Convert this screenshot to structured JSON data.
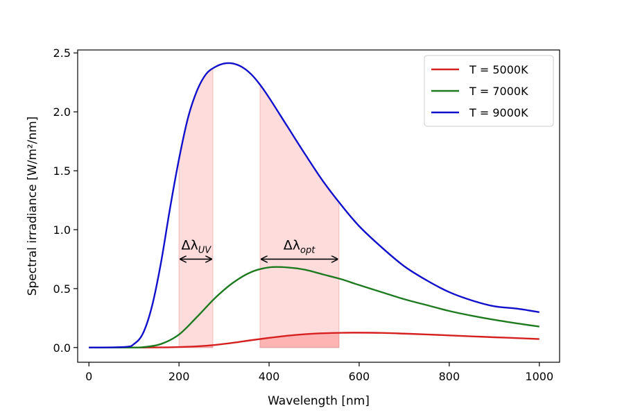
{
  "chart_data": {
    "type": "line",
    "title": "",
    "xlabel": "Wavelength [nm]",
    "ylabel": "Spectral irradiance [W/m²/nm]",
    "xlim": [
      -25,
      1045
    ],
    "ylim": [
      -0.125,
      2.525
    ],
    "xticks": [
      0,
      200,
      400,
      600,
      800,
      1000
    ],
    "yticks": [
      0.0,
      0.5,
      1.0,
      1.5,
      2.0,
      2.5
    ],
    "xtick_labels": [
      "0",
      "200",
      "400",
      "600",
      "800",
      "1000"
    ],
    "ytick_labels": [
      "0.0",
      "0.5",
      "1.0",
      "1.5",
      "2.0",
      "2.5"
    ],
    "grid": false,
    "legend_position": "top-right",
    "series": [
      {
        "name": "T = 5000K",
        "color": "#d62020",
        "x": [
          0,
          80,
          120,
          160,
          200,
          240,
          280,
          320,
          360,
          400,
          440,
          480,
          520,
          560,
          600,
          650,
          700,
          750,
          800,
          850,
          900,
          950,
          1000
        ],
        "y": [
          0,
          0,
          0,
          0.001,
          0.004,
          0.01,
          0.022,
          0.04,
          0.062,
          0.082,
          0.1,
          0.113,
          0.121,
          0.125,
          0.126,
          0.124,
          0.118,
          0.111,
          0.103,
          0.095,
          0.087,
          0.08,
          0.072
        ]
      },
      {
        "name": "T = 7000K",
        "color": "#1e7a1e",
        "x": [
          0,
          80,
          120,
          160,
          200,
          240,
          280,
          320,
          360,
          400,
          440,
          480,
          520,
          560,
          600,
          650,
          700,
          750,
          800,
          850,
          900,
          950,
          1000
        ],
        "y": [
          0,
          0,
          0.003,
          0.03,
          0.11,
          0.26,
          0.42,
          0.55,
          0.64,
          0.68,
          0.68,
          0.66,
          0.62,
          0.58,
          0.53,
          0.47,
          0.41,
          0.36,
          0.31,
          0.27,
          0.235,
          0.205,
          0.178
        ]
      },
      {
        "name": "T = 9000K",
        "color": "#1010cc",
        "x": [
          0,
          80,
          100,
          120,
          140,
          160,
          180,
          200,
          220,
          240,
          260,
          280,
          300,
          320,
          340,
          360,
          380,
          400,
          440,
          480,
          520,
          560,
          600,
          650,
          700,
          750,
          800,
          850,
          900,
          950,
          1000
        ],
        "y": [
          0,
          0.005,
          0.03,
          0.12,
          0.35,
          0.72,
          1.18,
          1.6,
          1.95,
          2.18,
          2.32,
          2.38,
          2.41,
          2.41,
          2.38,
          2.32,
          2.23,
          2.12,
          1.88,
          1.64,
          1.41,
          1.21,
          1.03,
          0.85,
          0.69,
          0.57,
          0.47,
          0.4,
          0.35,
          0.33,
          0.3
        ]
      }
    ],
    "shaded_bands": [
      {
        "name": "UV band",
        "x_start": 200,
        "x_end": 275
      },
      {
        "name": "optical band",
        "x_start": 380,
        "x_end": 555
      }
    ],
    "annotations": [
      {
        "name": "delta-lambda-uv",
        "label_main": "Δλ",
        "label_sub": "UV",
        "x": 238,
        "y": 0.75,
        "x_start": 200,
        "x_end": 275
      },
      {
        "name": "delta-lambda-opt",
        "label_main": "Δλ",
        "label_sub": "opt",
        "x": 467,
        "y": 0.75,
        "x_start": 380,
        "x_end": 555
      }
    ]
  }
}
